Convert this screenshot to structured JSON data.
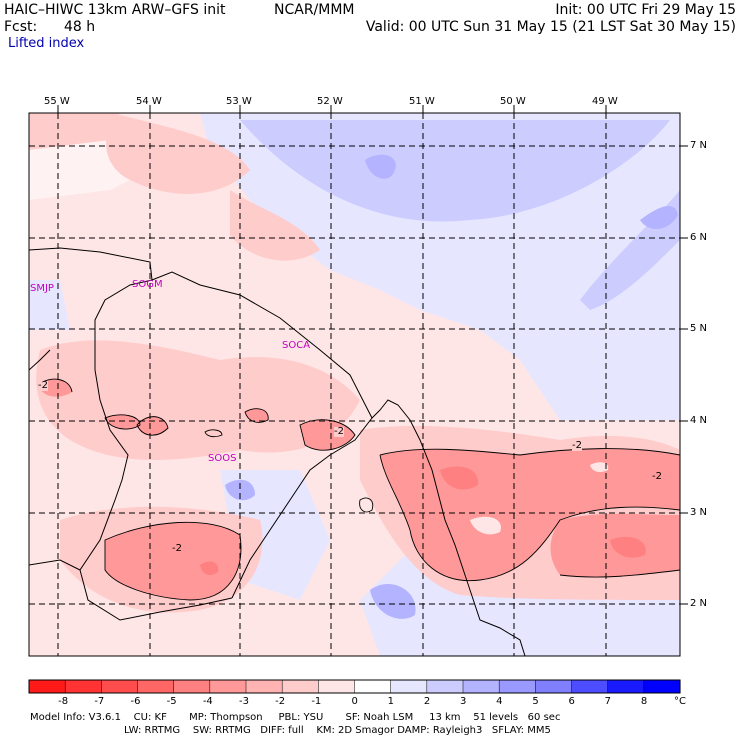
{
  "header": {
    "model_line": "HAIC–HIWC 13km ARW–GFS init",
    "center": "NCAR/MMM",
    "init": "Init: 00 UTC Fri 29 May 15",
    "fcst": "Fcst:",
    "fcst_hours": "48 h",
    "valid": "Valid: 00 UTC Sun 31 May 15 (21 LST Sat 30 May 15)",
    "field": "Lifted index"
  },
  "axes": {
    "longitudes": [
      "55 W",
      "54 W",
      "53 W",
      "52 W",
      "51 W",
      "50 W",
      "49 W"
    ],
    "latitudes": [
      "7 N",
      "6 N",
      "5 N",
      "4 N",
      "3 N",
      "2 N"
    ]
  },
  "stations": [
    "SMJP",
    "SOGM",
    "SOCA",
    "SOOS"
  ],
  "contour_labels": [
    "-2",
    "-2",
    "-2",
    "-2",
    "-2"
  ],
  "colorbar": {
    "ticks": [
      "-8",
      "-7",
      "-6",
      "-5",
      "-4",
      "-3",
      "-2",
      "-1",
      "0",
      "1",
      "2",
      "3",
      "4",
      "5",
      "6",
      "7",
      "8"
    ],
    "unit": "°C",
    "colors": [
      "#ff1a1a",
      "#ff3333",
      "#ff4d4d",
      "#ff6666",
      "#ff8080",
      "#ff9999",
      "#ffb3b3",
      "#ffcccc",
      "#ffe6e6",
      "#ffffff",
      "#e6e6ff",
      "#ccccff",
      "#b3b3ff",
      "#9999ff",
      "#8080ff",
      "#4d4dff",
      "#1a1aff",
      "#0000ff"
    ]
  },
  "footer": {
    "line1": "Model Info: V3.6.1    CU: KF       MP: Thompson     PBL: YSU       SF: Noah LSM     13 km    51 levels   60 sec",
    "line2": "LW: RRTMG    SW: RRTMG   DIFF: full    KM: 2D Smagor DAMP: Rayleigh3   SFLAY: MM5"
  },
  "colors": {
    "light_pink": "#ffe6e6",
    "pink": "#ffcccc",
    "medium_pink": "#ffb3b3",
    "red_pink": "#ff9999",
    "light_blue": "#e6e6ff",
    "blue": "#ccccff",
    "medium_blue": "#b3b3ff",
    "station_magenta": "#c000c0"
  }
}
